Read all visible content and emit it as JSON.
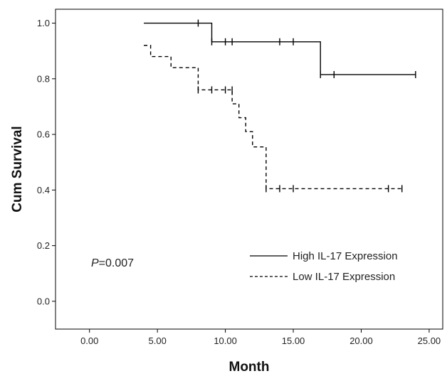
{
  "chart_data": {
    "type": "line",
    "xlabel": "Month",
    "ylabel": "Cum Survival",
    "xlim": [
      -2.5,
      26.0
    ],
    "ylim": [
      -0.1,
      1.05
    ],
    "x_ticks": [
      "0.00",
      "5.00",
      "10.00",
      "15.00",
      "20.00",
      "25.00"
    ],
    "y_ticks": [
      "0.0",
      "0.2",
      "0.4",
      "0.6",
      "0.8",
      "1.0"
    ],
    "annotation": {
      "italic": "P",
      "text": "=0.007"
    },
    "legend_position": "lower-right",
    "series": [
      {
        "name": "High IL-17 Expression",
        "style": "solid",
        "color": "#000000",
        "steps": [
          [
            4,
            1.0
          ],
          [
            9,
            0.933
          ],
          [
            17,
            0.815
          ],
          [
            24,
            0.815
          ]
        ],
        "censored": [
          [
            8,
            1.0
          ],
          [
            9,
            0.933
          ],
          [
            10,
            0.933
          ],
          [
            10.5,
            0.933
          ],
          [
            14,
            0.933
          ],
          [
            15,
            0.933
          ],
          [
            17,
            0.815
          ],
          [
            18,
            0.815
          ],
          [
            24,
            0.815
          ]
        ]
      },
      {
        "name": "Low IL-17 Expression",
        "style": "dashed",
        "color": "#000000",
        "steps": [
          [
            4,
            0.92
          ],
          [
            4.5,
            0.88
          ],
          [
            6,
            0.84
          ],
          [
            8,
            0.76
          ],
          [
            10.5,
            0.71
          ],
          [
            11,
            0.66
          ],
          [
            11.5,
            0.61
          ],
          [
            12,
            0.555
          ],
          [
            13,
            0.405
          ],
          [
            23,
            0.405
          ]
        ],
        "censored": [
          [
            8,
            0.76
          ],
          [
            9,
            0.76
          ],
          [
            10,
            0.76
          ],
          [
            10.5,
            0.76
          ],
          [
            13,
            0.405
          ],
          [
            14,
            0.405
          ],
          [
            15,
            0.405
          ],
          [
            22,
            0.405
          ],
          [
            23,
            0.405
          ]
        ]
      }
    ]
  }
}
